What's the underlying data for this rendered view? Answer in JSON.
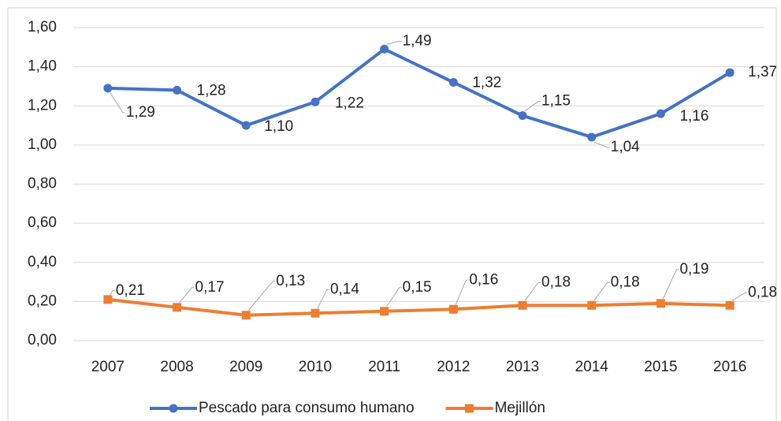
{
  "chart_data": {
    "type": "line",
    "categories": [
      "2007",
      "2008",
      "2009",
      "2010",
      "2011",
      "2012",
      "2013",
      "2014",
      "2015",
      "2016"
    ],
    "series": [
      {
        "name": "Pescado para consumo humano",
        "color": "#4472c4",
        "values": [
          1.29,
          1.28,
          1.1,
          1.22,
          1.49,
          1.32,
          1.15,
          1.04,
          1.16,
          1.37
        ],
        "value_labels": [
          "1,29",
          "1,28",
          "1,10",
          "1,22",
          "1,49",
          "1,32",
          "1,15",
          "1,04",
          "1,16",
          "1,37"
        ]
      },
      {
        "name": "Mejillón",
        "color": "#ed7d31",
        "values": [
          0.21,
          0.17,
          0.13,
          0.14,
          0.15,
          0.16,
          0.18,
          0.18,
          0.19,
          0.18
        ],
        "value_labels": [
          "0,21",
          "0,17",
          "0,13",
          "0,14",
          "0,15",
          "0,16",
          "0,18",
          "0,18",
          "0,19",
          "0,18"
        ]
      }
    ],
    "ylim": [
      0,
      1.6
    ],
    "yticks": [
      {
        "value": 0,
        "label": "0,00"
      },
      {
        "value": 0.2,
        "label": "0,20"
      },
      {
        "value": 0.4,
        "label": "0,40"
      },
      {
        "value": 0.6,
        "label": "0,60"
      },
      {
        "value": 0.8,
        "label": "0,80"
      },
      {
        "value": 1.0,
        "label": "1,00"
      },
      {
        "value": 1.2,
        "label": "1,20"
      },
      {
        "value": 1.4,
        "label": "1,40"
      },
      {
        "value": 1.6,
        "label": "1,60"
      }
    ],
    "grid": true,
    "legend": "bottom"
  }
}
